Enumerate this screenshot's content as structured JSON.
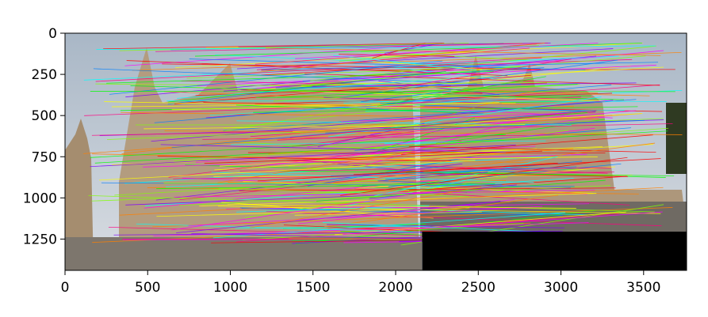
{
  "chart_data": {
    "type": "image",
    "description_kind": "feature matches between two stitched photos",
    "xlim": [
      0,
      3760
    ],
    "ylim": [
      1440,
      0
    ],
    "x_ticks": [
      0,
      500,
      1000,
      1500,
      2000,
      2500,
      3000,
      3500
    ],
    "y_ticks": [
      0,
      250,
      500,
      750,
      1000,
      1250
    ],
    "black_region": {
      "x": [
        2160,
        3760
      ],
      "y": [
        1205,
        1440
      ]
    },
    "left_photo_width": 2160,
    "match_line_colors": [
      "#ff00ff",
      "#00ff00",
      "#ffff00",
      "#00ffff",
      "#ff8000",
      "#8000ff",
      "#ff0000",
      "#0080ff",
      "#80ff00",
      "#ff0080"
    ],
    "match_line_count": 260,
    "colors": {
      "sky": "#bcc6d0",
      "stone": "#b8a489",
      "street": "#6f6a63",
      "black": "#000000"
    }
  }
}
